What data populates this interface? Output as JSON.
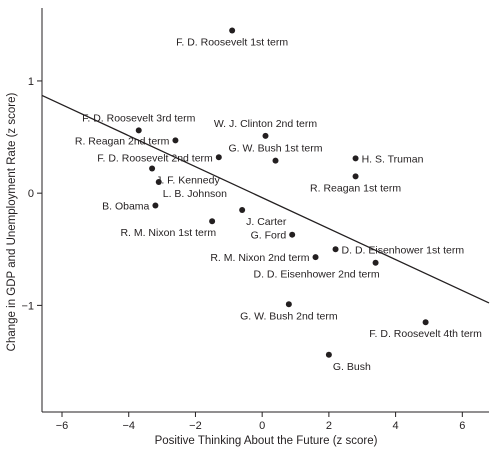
{
  "chart_data": {
    "type": "scatter",
    "title": "",
    "xlabel": "Positive Thinking About the Future (z score)",
    "ylabel": "Change in GDP and Unemployment Rate (z score)",
    "xlim": [
      -6.6,
      6.8
    ],
    "ylim": [
      -1.95,
      1.65
    ],
    "xticks": [
      -6,
      -4,
      -2,
      0,
      2,
      4,
      6
    ],
    "xtick_labels": [
      "−6",
      "−4",
      "−2",
      "0",
      "2",
      "4",
      "6"
    ],
    "yticks": [
      -1,
      0,
      1
    ],
    "ytick_labels": [
      "−1",
      "0",
      "1"
    ],
    "grid": false,
    "legend": "none",
    "point_color": "#231f20",
    "line_color": "#231f20",
    "regression_line": {
      "intercept": -0.04,
      "slope": -0.138
    },
    "points": [
      {
        "label": "F. D. Roosevelt 1st term",
        "x": -0.9,
        "y": 1.45,
        "label_pos": "below"
      },
      {
        "label": "F. D. Roosevelt 3rd term",
        "x": -3.7,
        "y": 0.56,
        "label_pos": "above"
      },
      {
        "label": "R. Reagan 2nd term",
        "x": -2.6,
        "y": 0.47,
        "label_pos": "left"
      },
      {
        "label": "W. J. Clinton 2nd term",
        "x": 0.1,
        "y": 0.51,
        "label_pos": "above"
      },
      {
        "label": "G. W. Bush 1st term",
        "x": 0.4,
        "y": 0.29,
        "label_pos": "above"
      },
      {
        "label": "F. D. Roosevelt 2nd term",
        "x": -1.3,
        "y": 0.32,
        "label_pos": "left"
      },
      {
        "label": "H. S. Truman",
        "x": 2.8,
        "y": 0.31,
        "label_pos": "right"
      },
      {
        "label": "J. F. Kennedy",
        "x": -3.3,
        "y": 0.22,
        "label_pos": "below-right"
      },
      {
        "label": "R. Reagan 1st term",
        "x": 2.8,
        "y": 0.15,
        "label_pos": "below"
      },
      {
        "label": "L. B. Johnson",
        "x": -3.1,
        "y": 0.1,
        "label_pos": "below-right"
      },
      {
        "label": "B. Obama",
        "x": -3.2,
        "y": -0.11,
        "label_pos": "left"
      },
      {
        "label": "J. Carter",
        "x": -0.6,
        "y": -0.15,
        "label_pos": "below-right"
      },
      {
        "label": "R. M. Nixon 1st term",
        "x": -1.5,
        "y": -0.25,
        "label_pos": "below-left"
      },
      {
        "label": "G. Ford",
        "x": 0.9,
        "y": -0.37,
        "label_pos": "left"
      },
      {
        "label": "R. M. Nixon 2nd term",
        "x": 1.6,
        "y": -0.57,
        "label_pos": "left"
      },
      {
        "label": "D. D. Eisenhower 1st term",
        "x": 2.2,
        "y": -0.5,
        "label_pos": "right"
      },
      {
        "label": "D. D. Eisenhower 2nd term",
        "x": 3.4,
        "y": -0.62,
        "label_pos": "below-left"
      },
      {
        "label": "G. W. Bush 2nd term",
        "x": 0.8,
        "y": -0.99,
        "label_pos": "below"
      },
      {
        "label": "F. D. Roosevelt 4th term",
        "x": 4.9,
        "y": -1.15,
        "label_pos": "below"
      },
      {
        "label": "G. Bush",
        "x": 2.0,
        "y": -1.44,
        "label_pos": "below-right"
      }
    ]
  }
}
